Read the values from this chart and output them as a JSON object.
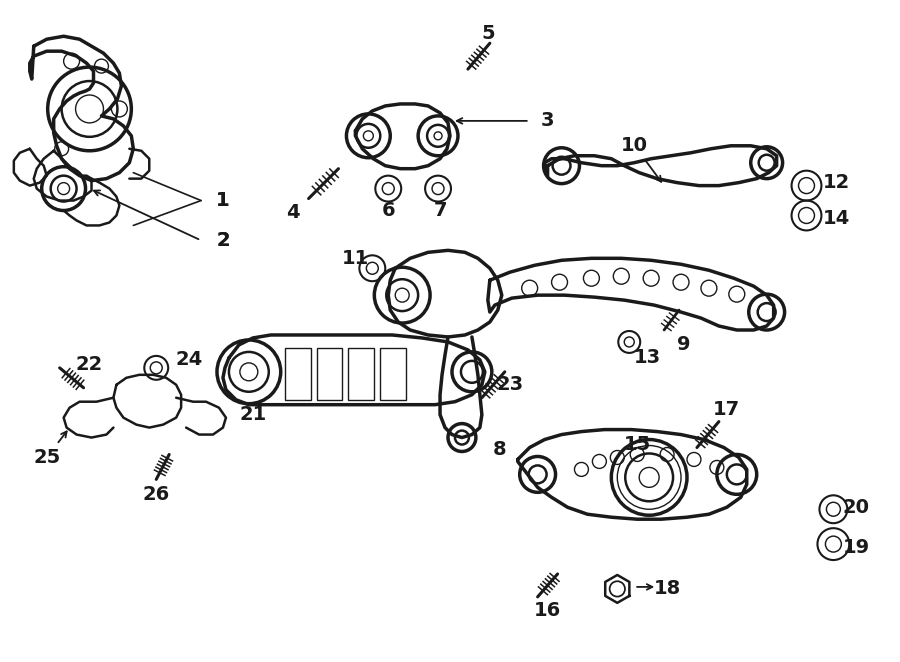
{
  "bg_color": "#ffffff",
  "line_color": "#1a1a1a",
  "fig_width": 9.0,
  "fig_height": 6.62,
  "dpi": 100,
  "label_fontsize": 14,
  "lw_main": 1.8,
  "lw_thick": 2.5,
  "lw_thin": 1.0
}
